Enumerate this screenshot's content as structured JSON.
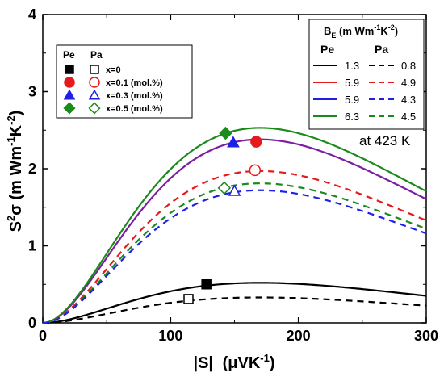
{
  "chart_data": {
    "type": "line",
    "xlabel_prefix": "|S|",
    "xlabel_units": "(μVK",
    "xlabel_exp": "-1",
    "xlabel_close": ")",
    "ylabel_main": "S",
    "ylabel_sup1": "2",
    "ylabel_sigma": "σ (m Wm",
    "ylabel_exp1": "-1",
    "ylabel_k": "K",
    "ylabel_exp2": "-2",
    "ylabel_close": ")",
    "xlim": [
      0,
      300
    ],
    "ylim": [
      0,
      4
    ],
    "x_ticks": [
      "0",
      "100",
      "200",
      "300"
    ],
    "y_ticks": [
      "0",
      "1",
      "2",
      "3",
      "4"
    ],
    "annotation": "at 423 K",
    "colors": {
      "black": "#000000",
      "red": "#e41a1c",
      "blue": "#1f1fe6",
      "green": "#1a8a1a",
      "purple": "#7b1fa2"
    },
    "series": [
      {
        "color": "#000000",
        "style": "solid",
        "B_E": 1.3
      },
      {
        "color": "#000000",
        "style": "dashed",
        "B_E": 0.8
      },
      {
        "color": "#e41a1c",
        "style": "solid",
        "B_E": 5.9
      },
      {
        "color": "#e41a1c",
        "style": "dashed",
        "B_E": 4.9
      },
      {
        "color": "#1f1fe6",
        "style": "solid",
        "B_E": 5.9
      },
      {
        "color": "#1f1fe6",
        "style": "dashed",
        "B_E": 4.3
      },
      {
        "color": "#1a8a1a",
        "style": "solid",
        "B_E": 6.3
      },
      {
        "color": "#1a8a1a",
        "style": "dashed",
        "B_E": 4.5
      }
    ],
    "curves": [
      {
        "color": "#000000",
        "style": "solid",
        "peak_x": 170,
        "peak_y": 0.52
      },
      {
        "color": "#000000",
        "style": "dashed",
        "peak_x": 170,
        "peak_y": 0.33
      },
      {
        "color": "#7b1fa2",
        "style": "solid",
        "peak_x": 170,
        "peak_y": 2.38
      },
      {
        "color": "#1a8a1a",
        "style": "solid",
        "peak_x": 170,
        "peak_y": 2.53
      },
      {
        "color": "#e41a1c",
        "style": "dashed",
        "peak_x": 170,
        "peak_y": 1.97
      },
      {
        "color": "#1a8a1a",
        "style": "dashed",
        "peak_x": 170,
        "peak_y": 1.81
      },
      {
        "color": "#1f1fe6",
        "style": "dashed",
        "peak_x": 170,
        "peak_y": 1.72
      }
    ],
    "markers": [
      {
        "shape": "square",
        "filled": true,
        "color": "#000000",
        "x": 128,
        "y": 0.5
      },
      {
        "shape": "square",
        "filled": false,
        "color": "#000000",
        "x": 114,
        "y": 0.31
      },
      {
        "shape": "circle",
        "filled": true,
        "color": "#e41a1c",
        "x": 167,
        "y": 2.35
      },
      {
        "shape": "circle",
        "filled": false,
        "color": "#e41a1c",
        "x": 166,
        "y": 1.98
      },
      {
        "shape": "triangle",
        "filled": true,
        "color": "#1f1fe6",
        "x": 149,
        "y": 2.34
      },
      {
        "shape": "triangle",
        "filled": false,
        "color": "#1f1fe6",
        "x": 150,
        "y": 1.71
      },
      {
        "shape": "diamond",
        "filled": true,
        "color": "#1a8a1a",
        "x": 143,
        "y": 2.46
      },
      {
        "shape": "diamond",
        "filled": false,
        "color": "#1a8a1a",
        "x": 142,
        "y": 1.75
      }
    ],
    "legend_left": {
      "header_pe": "Pe",
      "header_pa": "Pa",
      "entries": [
        {
          "shape": "square",
          "color": "#000000",
          "label": "x=0"
        },
        {
          "shape": "circle",
          "color": "#e41a1c",
          "label": "x=0.1 (mol.%)"
        },
        {
          "shape": "triangle",
          "color": "#1f1fe6",
          "label": "x=0.3 (mol.%)"
        },
        {
          "shape": "diamond",
          "color": "#1a8a1a",
          "label": "x=0.5 (mol.%)"
        }
      ]
    },
    "legend_right": {
      "title_b": "B",
      "title_sub": "E",
      "title_units": " (m Wm",
      "title_exp1": "-1",
      "title_k": "K",
      "title_exp2": "-2",
      "title_close": ")",
      "header_pe": "Pe",
      "header_pa": "Pa",
      "rows": [
        {
          "color": "#000000",
          "pe": "1.3",
          "pa": "0.8"
        },
        {
          "color": "#e41a1c",
          "pe": "5.9",
          "pa": "4.9"
        },
        {
          "color": "#1f1fe6",
          "pe": "5.9",
          "pa": "4.3"
        },
        {
          "color": "#1a8a1a",
          "pe": "6.3",
          "pa": "4.5"
        }
      ]
    }
  }
}
